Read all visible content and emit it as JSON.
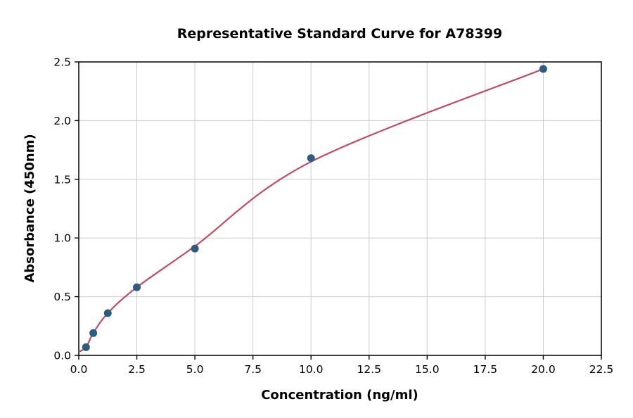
{
  "chart_data": {
    "type": "scatter",
    "title": "Representative Standard Curve for A78399",
    "xlabel": "Concentration (ng/ml)",
    "ylabel": "Absorbance (450nm)",
    "xlim": [
      0,
      22.5
    ],
    "ylim": [
      0,
      2.5
    ],
    "xticks": [
      0,
      2.5,
      5,
      7.5,
      10,
      12.5,
      15,
      17.5,
      20,
      22.5
    ],
    "xtick_labels": [
      "0.0",
      "2.5",
      "5.0",
      "7.5",
      "10.0",
      "12.5",
      "15.0",
      "17.5",
      "20.0",
      "22.5"
    ],
    "yticks": [
      0,
      0.5,
      1,
      1.5,
      2,
      2.5
    ],
    "ytick_labels": [
      "0.0",
      "0.5",
      "1.0",
      "1.5",
      "2.0",
      "2.5"
    ],
    "grid": true,
    "legend": "none",
    "series": [
      {
        "name": "standard-points",
        "type": "scatter",
        "x": [
          0.3125,
          0.625,
          1.25,
          2.5,
          5,
          10,
          20
        ],
        "y": [
          0.07,
          0.19,
          0.36,
          0.58,
          0.91,
          1.68,
          2.44
        ]
      },
      {
        "name": "fitted-curve",
        "type": "line",
        "x": [
          0,
          0.3125,
          0.625,
          1.25,
          2.5,
          5,
          10,
          20
        ],
        "y": [
          0.03,
          0.07,
          0.19,
          0.36,
          0.58,
          0.93,
          1.65,
          2.44
        ]
      }
    ],
    "colors": {
      "point": "#2e5c7f",
      "curve": "#c34a63",
      "grid": "#cccccc",
      "axis": "#000000",
      "background": "#ffffff"
    }
  }
}
